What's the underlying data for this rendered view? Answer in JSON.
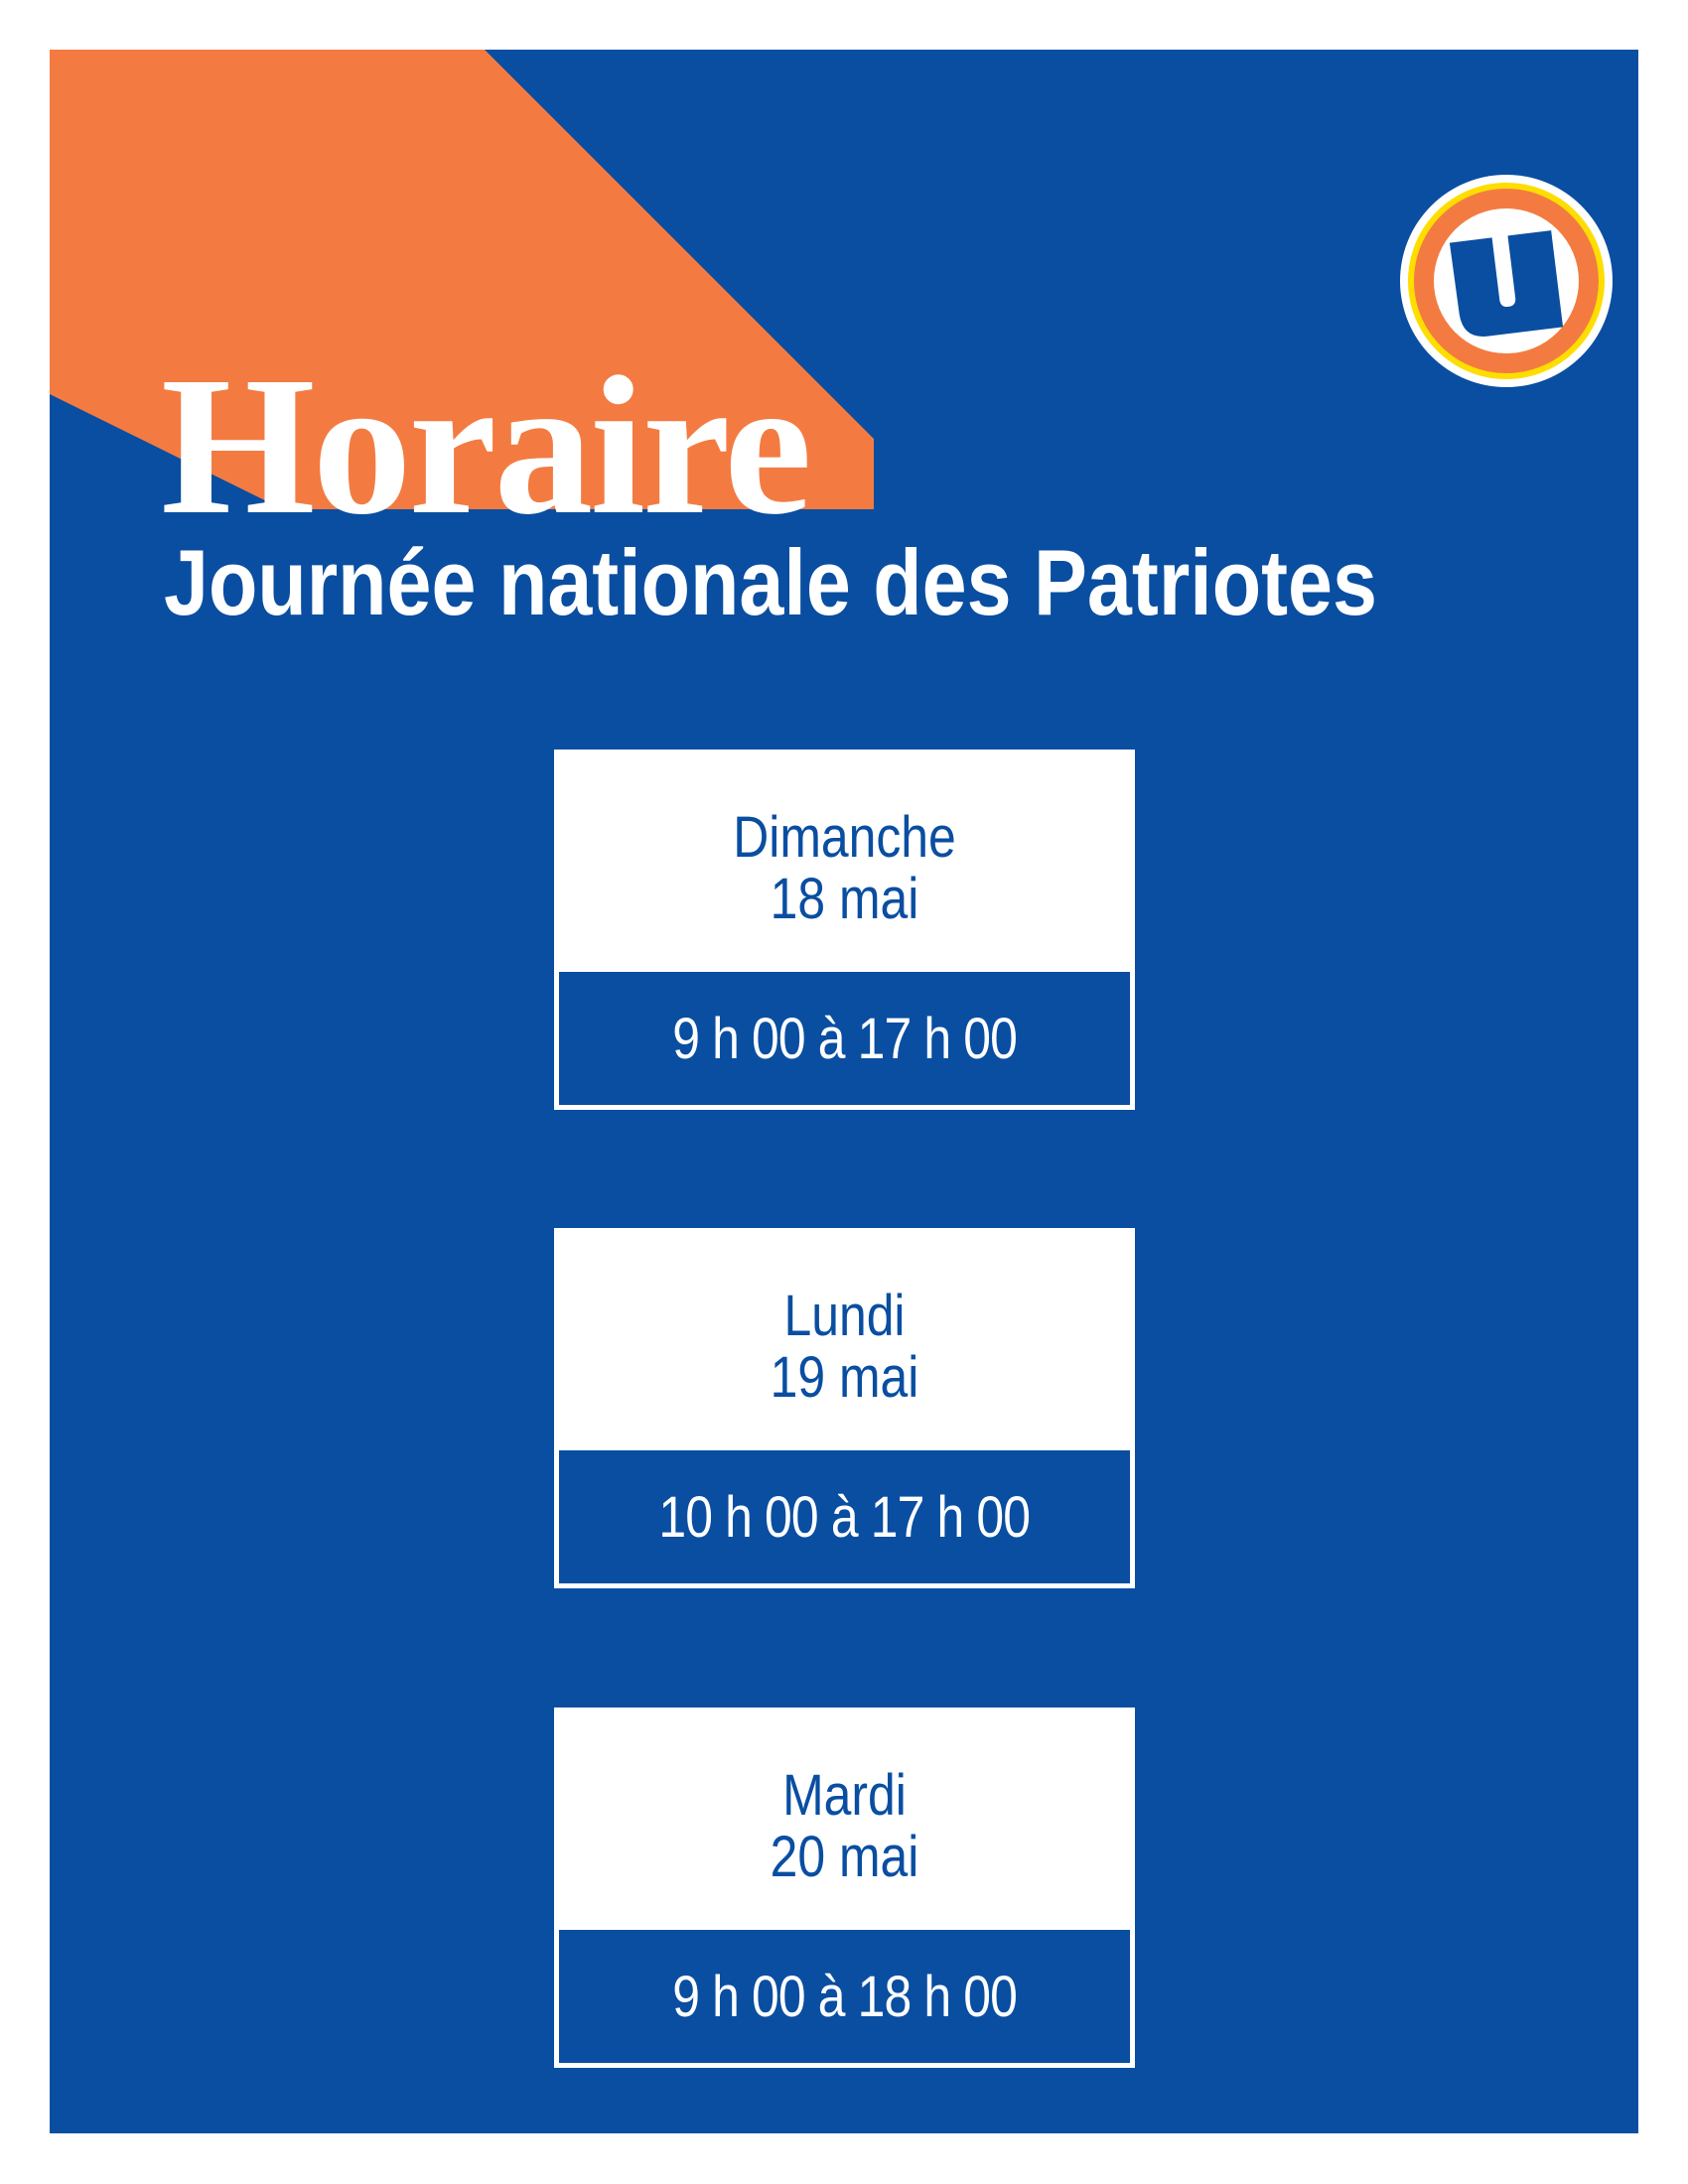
{
  "title": "Horaire",
  "subtitle": "Journée nationale des Patriotes",
  "colors": {
    "background_blue": "#094ea1",
    "accent_orange": "#f37b42",
    "logo_yellow": "#fedd00"
  },
  "logo": {
    "icon": "u-circle-logo"
  },
  "schedule": [
    {
      "day": "Dimanche",
      "date": "18 mai",
      "hours": "9 h 00 à 17 h 00"
    },
    {
      "day": "Lundi",
      "date": "19 mai",
      "hours": "10 h 00 à 17 h 00"
    },
    {
      "day": "Mardi",
      "date": "20 mai",
      "hours": "9 h 00 à 18 h 00"
    }
  ]
}
